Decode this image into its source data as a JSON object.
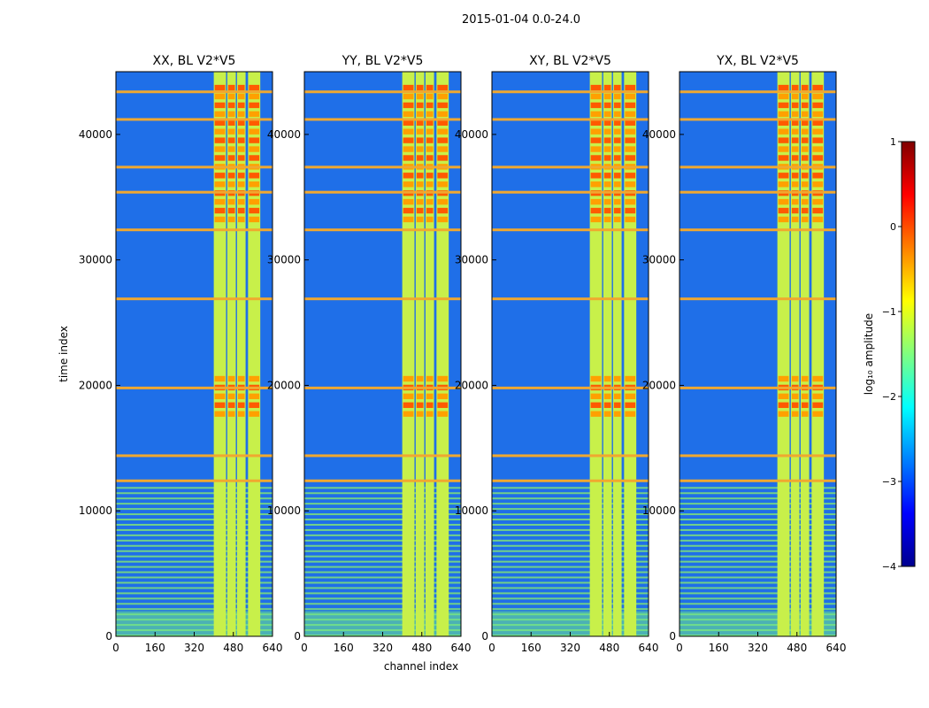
{
  "figure": {
    "suptitle": "2015-01-04 0.0-24.0",
    "xlabel": "channel index",
    "ylabel": "time index"
  },
  "chart_data": {
    "type": "heatmap",
    "x_range": [
      0,
      640
    ],
    "y_range": [
      0,
      45000
    ],
    "x_ticks": [
      0,
      160,
      320,
      480,
      640
    ],
    "y_ticks": [
      0,
      10000,
      20000,
      30000,
      40000
    ],
    "panels": [
      {
        "title": "XX, BL V2*V5",
        "polarization": "XX"
      },
      {
        "title": "YY, BL V2*V5",
        "polarization": "YY"
      },
      {
        "title": "XY, BL V2*V5",
        "polarization": "XY"
      },
      {
        "title": "YX, BL V2*V5",
        "polarization": "YX"
      }
    ],
    "bright_channel_ranges": [
      [
        400,
        450
      ],
      [
        455,
        490
      ],
      [
        495,
        530
      ],
      [
        540,
        590
      ]
    ],
    "strong_time_ranges": [
      [
        17500,
        20500
      ],
      [
        33000,
        44000
      ]
    ],
    "flagged_rows": [
      12500,
      14500,
      19900,
      27000,
      32500,
      35500,
      37500,
      41300,
      43500
    ],
    "colorbar": {
      "label": "log₁₀ amplitude",
      "range": [
        -4,
        1
      ],
      "ticks": [
        "1",
        "0",
        "−1",
        "−2",
        "−3",
        "−4"
      ],
      "colormap": "jet"
    }
  }
}
